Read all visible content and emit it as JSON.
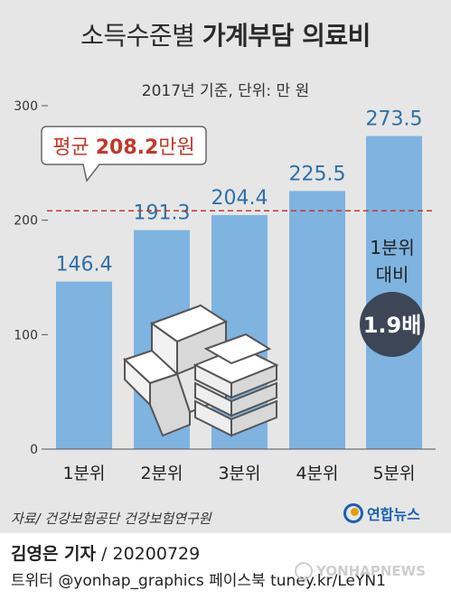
{
  "title_light": "소득수준별 ",
  "title_bold": "가계부담 의료비",
  "subtitle": "2017년 기준, 단위: 만 원",
  "average_callout": {
    "prefix": "평균 ",
    "value": "208.2",
    "suffix": "만원"
  },
  "comparison_badge": {
    "line1": "1분위",
    "line2": "대비",
    "value": "1.9배"
  },
  "source": "자료/ 건강보험공단 건강보험연구원",
  "logo": "연합뉴스",
  "byline": {
    "author": "김영은 기자",
    "sep": " / ",
    "date": "20200729"
  },
  "social": "트위터 @yonhap_graphics  페이스북 tuney.kr/LeYN1",
  "watermark": "YONHAPNEWS",
  "colors": {
    "bar": "#7fb3e0",
    "panel": "#e6e6e6",
    "average_line": "#c0392b",
    "badge": "#3c4656"
  },
  "chart_data": {
    "type": "bar",
    "categories": [
      "1분위",
      "2분위",
      "3분위",
      "4분위",
      "5분위"
    ],
    "values": [
      146.4,
      191.3,
      204.4,
      225.5,
      273.5
    ],
    "value_labels": [
      "146.4",
      "191.3",
      "204.4",
      "225.5",
      "273.5"
    ],
    "ylim": [
      0,
      300
    ],
    "yticks": [
      "0",
      "100",
      "200",
      "300"
    ],
    "average": 208.2,
    "grid": false
  }
}
